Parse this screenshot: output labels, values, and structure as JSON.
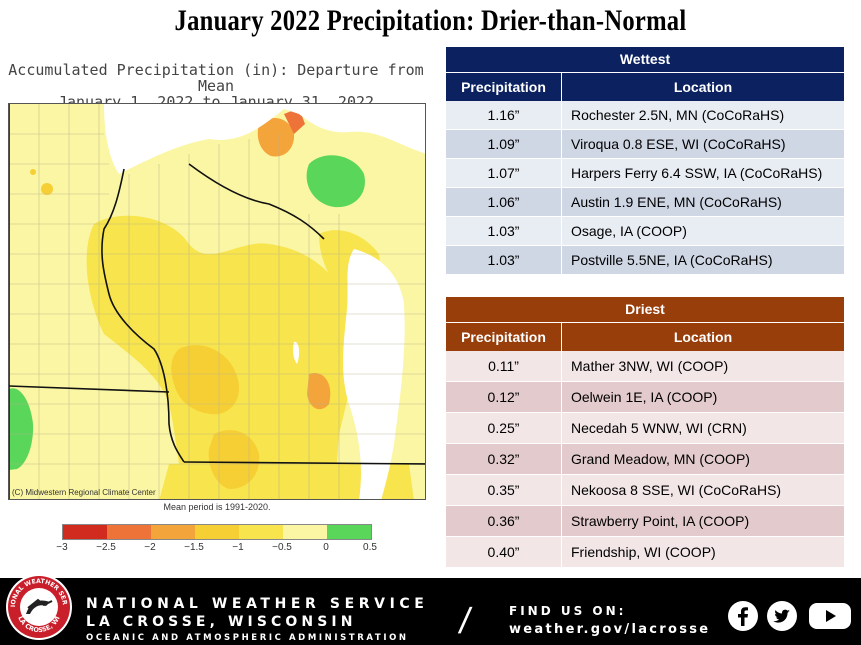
{
  "title": "January 2022 Precipitation:  Drier-than-Normal",
  "map": {
    "heading_line1": "Accumulated Precipitation (in): Departure from Mean",
    "heading_line2": "January 1, 2022 to January 31, 2022",
    "credit": "(C) Midwestern Regional Climate Center",
    "mean_note": "Mean period is 1991-2020.",
    "scale": {
      "colors": [
        "#d12a1e",
        "#ee7338",
        "#f3a43a",
        "#f6cf35",
        "#f8e44c",
        "#fbf6a3",
        "#5ad65a"
      ],
      "ticks": [
        "−3",
        "−2.5",
        "−2",
        "−1.5",
        "−1",
        "−0.5",
        "0",
        "0.5"
      ]
    }
  },
  "wettest": {
    "heading": "Wettest",
    "col_precip": "Precipitation",
    "col_location": "Location",
    "rows": [
      {
        "precip": "1.16”",
        "location": "Rochester 2.5N, MN (CoCoRaHS)"
      },
      {
        "precip": "1.09”",
        "location": "Viroqua 0.8 ESE, WI (CoCoRaHS)"
      },
      {
        "precip": "1.07”",
        "location": "Harpers Ferry 6.4 SSW, IA (CoCoRaHS)"
      },
      {
        "precip": "1.06”",
        "location": "Austin 1.9 ENE, MN (CoCoRaHS)"
      },
      {
        "precip": "1.03”",
        "location": "Osage, IA (COOP)"
      },
      {
        "precip": "1.03”",
        "location": "Postville 5.5NE, IA (CoCoRaHS)"
      }
    ]
  },
  "driest": {
    "heading": "Driest",
    "col_precip": "Precipitation",
    "col_location": "Location",
    "rows": [
      {
        "precip": "0.11”",
        "location": "Mather 3NW, WI (COOP)"
      },
      {
        "precip": "0.12”",
        "location": "Oelwein 1E, IA (COOP)"
      },
      {
        "precip": "0.25”",
        "location": "Necedah 5 WNW, WI (CRN)"
      },
      {
        "precip": "0.32”",
        "location": "Grand Meadow, MN (COOP)"
      },
      {
        "precip": "0.35”",
        "location": "Nekoosa 8 SSE, WI (CoCoRaHS)"
      },
      {
        "precip": "0.36”",
        "location": "Strawberry Point, IA (COOP)"
      },
      {
        "precip": "0.40”",
        "location": "Friendship, WI (COOP)"
      }
    ]
  },
  "footer": {
    "logo_top_text": "NATIONAL WEATHER SERVICE",
    "logo_bottom_text": "LA CROSSE, WI",
    "nws_name": "NATIONAL WEATHER SERVICE",
    "office": "LA CROSSE, WISCONSIN",
    "noaa": "OCEANIC AND ATMOSPHERIC ADMINISTRATION",
    "slash": "/",
    "find_label": "FIND US ON:",
    "url": "weather.gov/lacrosse",
    "social_icons": [
      "facebook-icon",
      "twitter-icon",
      "youtube-icon"
    ]
  }
}
